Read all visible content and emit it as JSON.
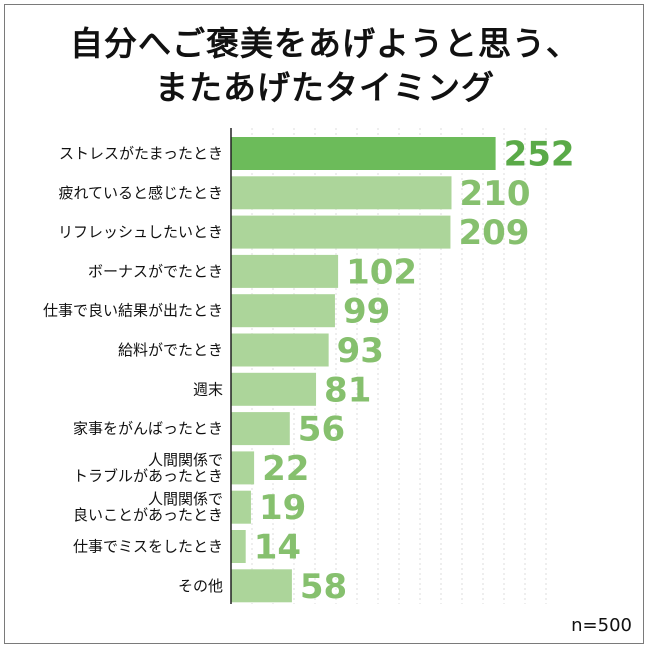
{
  "chart_data": {
    "type": "bar",
    "orientation": "horizontal",
    "title_lines": [
      "自分へご褒美をあげようと思う、",
      "またあげたタイミング"
    ],
    "categories": [
      [
        "ストレスがたまったとき"
      ],
      [
        "疲れていると感じたとき"
      ],
      [
        "リフレッシュしたいとき"
      ],
      [
        "ボーナスがでたとき"
      ],
      [
        "仕事で良い結果が出たとき"
      ],
      [
        "給料がでたとき"
      ],
      [
        "週末"
      ],
      [
        "家事をがんばったとき"
      ],
      [
        "人間関係で",
        "トラブルがあったとき"
      ],
      [
        "人間関係で",
        "良いことがあったとき"
      ],
      [
        "仕事でミスをしたとき"
      ],
      [
        "その他"
      ]
    ],
    "values": [
      252,
      210,
      209,
      102,
      99,
      93,
      81,
      56,
      22,
      19,
      14,
      58
    ],
    "highlight_index": 0,
    "xlim": [
      0,
      300
    ],
    "grid": true,
    "colors": {
      "highlight_bar": "#6cbb5a",
      "bar": "#acd59a",
      "highlight_label": "#5aaa48",
      "label": "#86c06e",
      "grid": "#dcdcdc",
      "axis": "#222222"
    }
  },
  "footnote": "n=500"
}
